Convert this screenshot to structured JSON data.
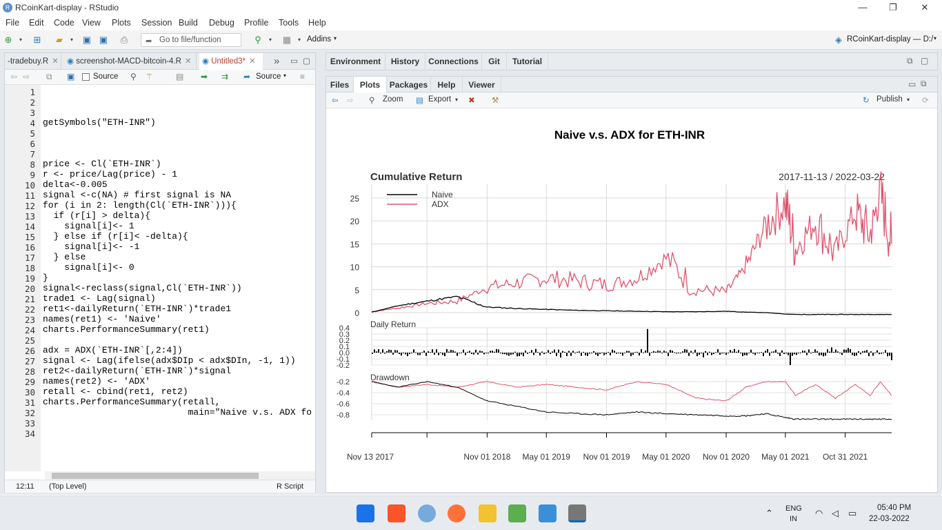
{
  "window": {
    "title": "RCoinKart-display - RStudio",
    "minimize": "—",
    "restore": "❐",
    "close": "✕"
  },
  "menu": [
    "File",
    "Edit",
    "Code",
    "View",
    "Plots",
    "Session",
    "Build",
    "Debug",
    "Profile",
    "Tools",
    "Help"
  ],
  "toolbar": {
    "goto_placeholder": "Go to file/function",
    "addins": "Addins",
    "project": "RCoinKart-display — D:/"
  },
  "editor": {
    "tabs": [
      "-tradebuy.R",
      "screenshot-MACD-bitcoin-4.R",
      "Untitled3*"
    ],
    "source_on_save": "Source",
    "source_button": "Source",
    "line_numbers": [
      "1",
      "2",
      "3",
      "4",
      "5",
      "6",
      "7",
      "8",
      "9",
      "10",
      "11",
      "12",
      "13",
      "14",
      "15",
      "16",
      "17",
      "18",
      "19",
      "20",
      "21",
      "22",
      "23",
      "24",
      "25",
      "26",
      "27",
      "28",
      "29",
      "30",
      "31",
      "32",
      "33",
      "34"
    ],
    "code_lines": [
      "",
      "",
      "",
      "getSymbols(\"ETH-INR\")",
      "",
      "",
      "",
      "price <- Cl(`ETH-INR`)",
      "r <- price/Lag(price) - 1",
      "delta<-0.005",
      "signal <-c(NA) # first signal is NA",
      "for (i in 2: length(Cl(`ETH-INR`))){",
      "  if (r[i] > delta){",
      "    signal[i]<- 1",
      "  } else if (r[i]< -delta){",
      "    signal[i]<- -1",
      "  } else",
      "    signal[i]<- 0",
      "}",
      "signal<-reclass(signal,Cl(`ETH-INR`))",
      "trade1 <- Lag(signal)",
      "ret1<-dailyReturn(`ETH-INR`)*trade1",
      "names(ret1) <- 'Naive'",
      "charts.PerformanceSummary(ret1)",
      "",
      "adx = ADX(`ETH-INR`[,2:4])",
      "signal <- Lag(ifelse(adx$DIp < adx$DIn, -1, 1))",
      "ret2<-dailyReturn(`ETH-INR`)*signal",
      "names(ret2) <- 'ADX'",
      "retall <- cbind(ret1, ret2)",
      "charts.PerformanceSummary(retall,",
      "                           main=\"Naive v.s. ADX fo",
      "",
      ""
    ],
    "cursor_pos": "12:11",
    "scope": "(Top Level)",
    "file_type": "R Script"
  },
  "env_tabs": [
    "Environment",
    "History",
    "Connections",
    "Git",
    "Tutorial"
  ],
  "plot_tabs": [
    "Files",
    "Plots",
    "Packages",
    "Help",
    "Viewer"
  ],
  "plot_toolbar": {
    "zoom": "Zoom",
    "export": "Export",
    "publish": "Publish"
  },
  "chart_data": {
    "type": "line",
    "title": "Naive v.s. ADX for ETH-INR",
    "panel1_title": "Cumulative Return",
    "date_range": "2017-11-13 / 2022-03-22",
    "legend": [
      "Naive",
      "ADX"
    ],
    "series_colors": {
      "Naive": "#000000",
      "ADX": "#DF536B"
    },
    "panel1_yticks": [
      "0",
      "5",
      "10",
      "15",
      "20",
      "25"
    ],
    "panel1_ylim": [
      0,
      28
    ],
    "panel2_title": "Daily Return",
    "panel2_yticks": [
      "0.4",
      "0.3",
      "0.2",
      "0.1",
      "0.0",
      "-0.1",
      "-0.2"
    ],
    "panel3_title": "Drawdown",
    "panel3_yticks": [
      "-0.2",
      "-0.4",
      "-0.6",
      "-0.8"
    ],
    "x_tick_labels": [
      "Nov 13 2017",
      "Nov 01 2018",
      "May 01 2019",
      "Nov 01 2019",
      "May 01 2020",
      "Nov 01 2020",
      "May 01 2021",
      "Oct 31 2021"
    ],
    "x_dates": [
      "2017-11-13",
      "2018-02-01",
      "2018-05-01",
      "2018-08-01",
      "2018-11-01",
      "2019-02-01",
      "2019-05-01",
      "2019-08-01",
      "2019-11-01",
      "2020-02-01",
      "2020-05-01",
      "2020-08-01",
      "2020-11-01",
      "2021-01-01",
      "2021-03-01",
      "2021-05-01",
      "2021-06-01",
      "2021-08-01",
      "2021-10-01",
      "2021-12-01",
      "2022-01-15",
      "2022-02-15",
      "2022-03-22"
    ],
    "series": [
      {
        "name": "ADX",
        "values": [
          0.2,
          1.0,
          2.0,
          2.5,
          5.5,
          6.5,
          7.5,
          7.0,
          6.0,
          7.5,
          12.0,
          5.0,
          4.5,
          10.0,
          19.0,
          24.0,
          14.0,
          20.0,
          13.0,
          22.0,
          17.0,
          26.0,
          15.0
        ]
      },
      {
        "name": "Naive",
        "values": [
          0.1,
          1.5,
          2.5,
          3.5,
          1.2,
          0.9,
          0.7,
          0.5,
          0.4,
          0.3,
          0.2,
          0.2,
          0.3,
          0.1,
          0.0,
          -0.3,
          -0.4,
          -0.4,
          -0.4,
          -0.4,
          -0.4,
          -0.4,
          -0.4
        ]
      }
    ],
    "drawdown": [
      {
        "name": "ADX",
        "values": [
          -0.2,
          -0.3,
          -0.25,
          -0.3,
          -0.2,
          -0.3,
          -0.25,
          -0.3,
          -0.35,
          -0.2,
          -0.25,
          -0.5,
          -0.55,
          -0.3,
          -0.2,
          -0.2,
          -0.45,
          -0.25,
          -0.5,
          -0.25,
          -0.45,
          -0.2,
          -0.45
        ]
      },
      {
        "name": "Naive",
        "values": [
          -0.2,
          -0.3,
          -0.2,
          -0.3,
          -0.55,
          -0.65,
          -0.75,
          -0.78,
          -0.8,
          -0.75,
          -0.78,
          -0.8,
          -0.82,
          -0.82,
          -0.78,
          -0.85,
          -0.88,
          -0.88,
          -0.88,
          -0.88,
          -0.88,
          -0.88,
          -0.88
        ]
      }
    ]
  },
  "taskbar": {
    "lang1": "ENG",
    "lang2": "IN",
    "time": "05:40 PM",
    "date": "22-03-2022"
  }
}
